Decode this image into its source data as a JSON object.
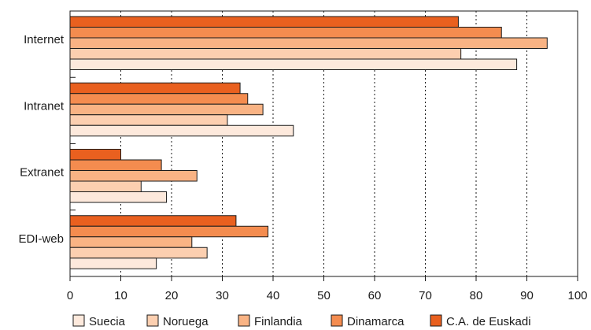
{
  "chart_data": {
    "type": "bar",
    "orientation": "horizontal",
    "categories": [
      "Internet",
      "Intranet",
      "Extranet",
      "EDI-web"
    ],
    "series": [
      {
        "name": "Suecia",
        "color": "#fde9dc",
        "values": [
          88,
          44,
          19,
          17
        ]
      },
      {
        "name": "Noruega",
        "color": "#fccfb0",
        "values": [
          77,
          31,
          14,
          27
        ]
      },
      {
        "name": "Finlandia",
        "color": "#f9b384",
        "values": [
          94,
          38,
          25,
          24
        ]
      },
      {
        "name": "Dinamarca",
        "color": "#f48c4f",
        "values": [
          85,
          35,
          18,
          39
        ]
      },
      {
        "name": "C.A. de Euskadi",
        "color": "#e9601f",
        "values": [
          76.5,
          33.5,
          10,
          32.7
        ]
      }
    ],
    "bar_order_top_to_bottom": [
      "C.A. de Euskadi",
      "Dinamarca",
      "Finlandia",
      "Noruega",
      "Suecia"
    ],
    "xlim": [
      0,
      100
    ],
    "xticks": [
      0,
      10,
      20,
      30,
      40,
      50,
      60,
      70,
      80,
      90,
      100
    ],
    "grid": "vertical dotted",
    "legend_position": "bottom",
    "title": "",
    "xlabel": "",
    "ylabel": ""
  }
}
